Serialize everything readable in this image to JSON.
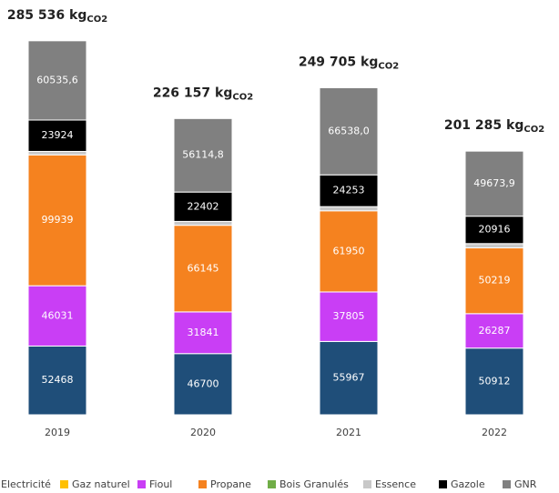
{
  "chart_data": {
    "type": "stacked_bar",
    "categories": [
      "2019",
      "2020",
      "2021",
      "2022"
    ],
    "ylim": [
      0,
      300000
    ],
    "series": [
      {
        "name": "Electricité",
        "color": "#1f4e79",
        "values": [
          52468,
          46700,
          55967,
          50912
        ],
        "show_labels": true
      },
      {
        "name": "Gaz naturel",
        "color": "#ffc000",
        "values": [
          0,
          0,
          0,
          0
        ],
        "show_labels": false
      },
      {
        "name": "Fioul",
        "color": "#c93ef5",
        "values": [
          46031,
          31841,
          37805,
          26287
        ],
        "show_labels": true
      },
      {
        "name": "Propane",
        "color": "#f5821f",
        "values": [
          99939,
          66145,
          61950,
          50219
        ],
        "show_labels": true
      },
      {
        "name": "Bois Granulés",
        "color": "#70ad47",
        "values": [
          0,
          0,
          0,
          0
        ],
        "show_labels": false
      },
      {
        "name": "Essence",
        "color": "#c8c8c8",
        "values": [
          2638,
          2954,
          3192,
          3277
        ],
        "show_labels": false
      },
      {
        "name": "Gazole",
        "color": "#000000",
        "values": [
          23924,
          22402,
          24253,
          20916
        ],
        "show_labels": true
      },
      {
        "name": "GNR",
        "color": "#808080",
        "values": [
          60535.6,
          56114.8,
          66538.0,
          49673.9
        ],
        "value_labels": [
          "60535,6",
          "56114,8",
          "66538,0",
          "49673,9"
        ],
        "show_labels": true
      }
    ],
    "totals": [
      285536,
      226157,
      249705,
      201285
    ],
    "total_labels": [
      "285 536 kg",
      "226 157 kg",
      "249 705 kg",
      "201 285 kg"
    ],
    "total_sub": "CO2"
  }
}
